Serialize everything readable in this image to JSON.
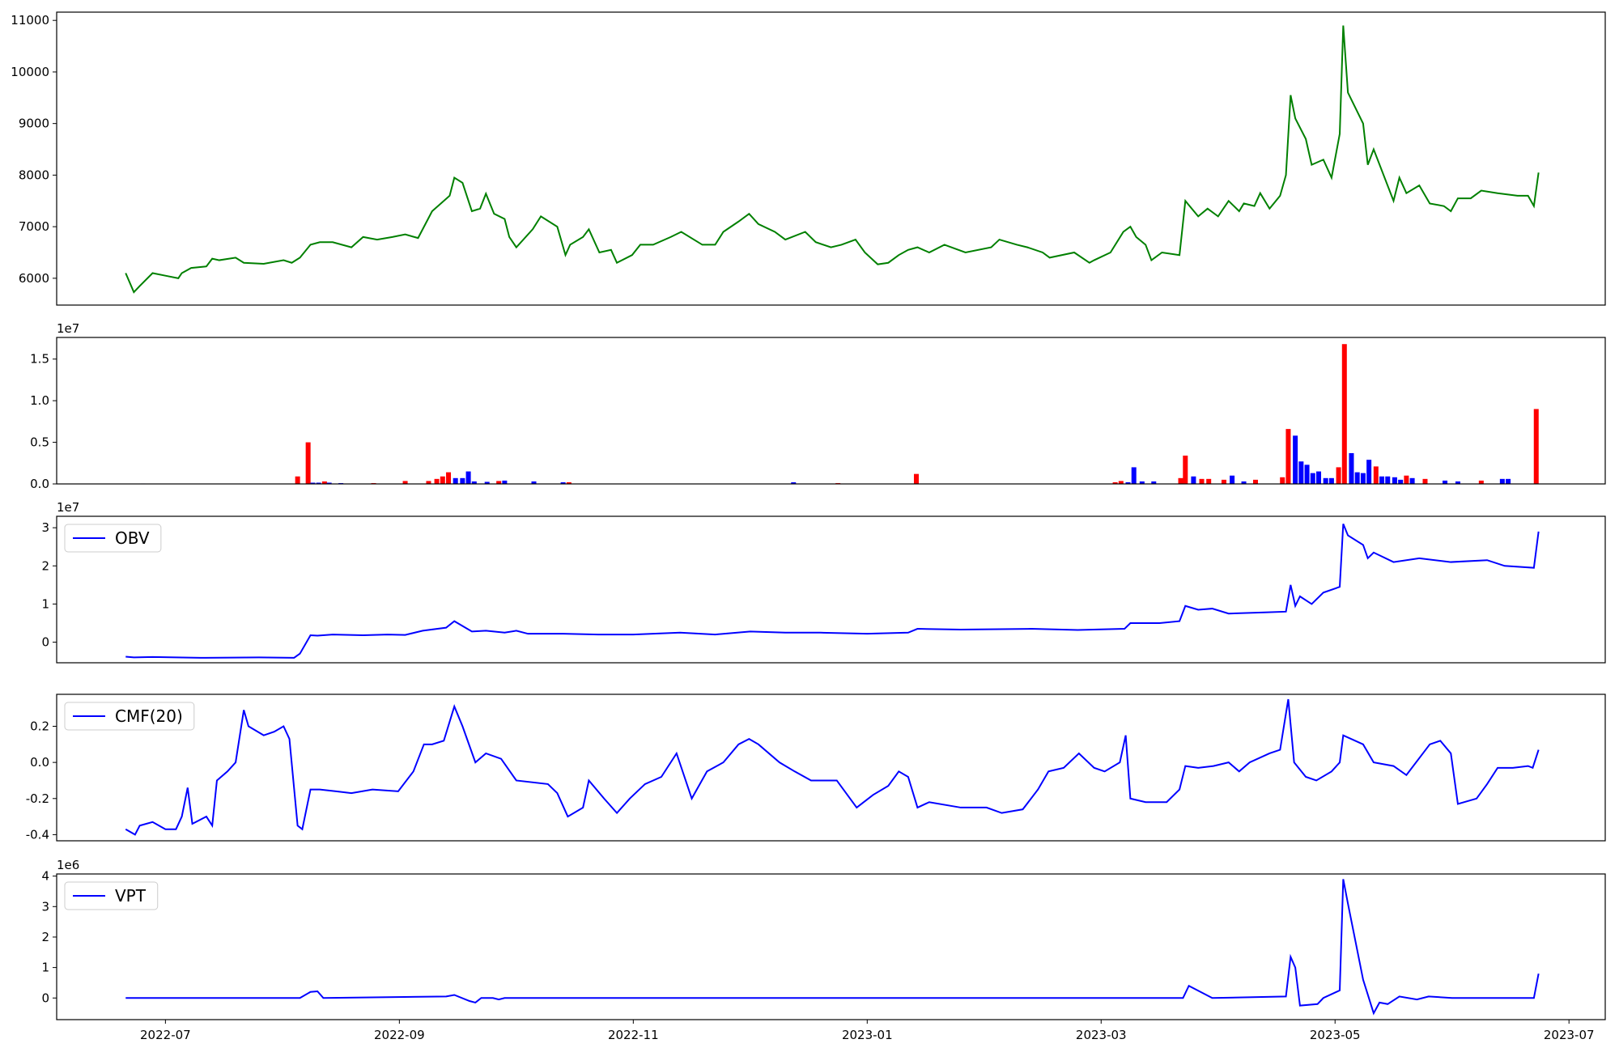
{
  "chart_data": [
    {
      "type": "line",
      "color": "#008000",
      "xlim": [
        6.07,
        19.31
      ],
      "ylim": [
        5480,
        11160
      ],
      "yticks": [
        6000,
        7000,
        8000,
        9000,
        10000,
        11000
      ],
      "x": [
        6.66,
        6.73,
        6.78,
        6.89,
        7.0,
        7.11,
        7.14,
        7.22,
        7.35,
        7.4,
        7.46,
        7.6,
        7.67,
        7.84,
        8.01,
        8.08,
        8.15,
        8.24,
        8.32,
        8.43,
        8.59,
        8.69,
        8.81,
        8.94,
        9.05,
        9.16,
        9.28,
        9.43,
        9.47,
        9.54,
        9.62,
        9.69,
        9.74,
        9.81,
        9.9,
        9.94,
        10.0,
        10.14,
        10.21,
        10.35,
        10.42,
        10.46,
        10.57,
        10.62,
        10.71,
        10.81,
        10.86,
        10.99,
        11.06,
        11.17,
        11.32,
        11.41,
        11.59,
        11.7,
        11.77,
        11.9,
        11.99,
        12.07,
        12.21,
        12.3,
        12.47,
        12.56,
        12.69,
        12.78,
        12.9,
        12.98,
        13.09,
        13.18,
        13.27,
        13.35,
        13.43,
        13.53,
        13.66,
        13.84,
        14.06,
        14.13,
        14.28,
        14.37,
        14.5,
        14.56,
        14.77,
        14.9,
        14.94,
        15.08,
        15.19,
        15.25,
        15.3,
        15.38,
        15.43,
        15.52,
        15.67,
        15.72,
        15.83,
        15.91,
        16.0,
        16.09,
        16.18,
        16.22,
        16.31,
        16.36,
        16.44,
        16.53,
        16.58,
        16.62,
        16.66,
        16.75,
        16.8,
        16.9,
        16.97,
        17.04,
        17.07,
        17.11,
        17.24,
        17.28,
        17.33,
        17.5,
        17.55,
        17.61,
        17.72,
        17.81,
        17.93,
        17.99,
        18.05,
        18.16,
        18.25,
        18.39,
        18.56,
        18.65,
        18.7,
        18.74
      ],
      "values": [
        6100,
        5730,
        5850,
        6100,
        6050,
        6000,
        6100,
        6200,
        6230,
        6380,
        6350,
        6400,
        6300,
        6280,
        6350,
        6300,
        6400,
        6650,
        6700,
        6700,
        6600,
        6800,
        6750,
        6800,
        6850,
        6780,
        7300,
        7600,
        7950,
        7850,
        7300,
        7350,
        7640,
        7250,
        7150,
        6800,
        6600,
        6950,
        7200,
        7000,
        6450,
        6650,
        6800,
        6950,
        6500,
        6550,
        6300,
        6450,
        6650,
        6650,
        6800,
        6900,
        6650,
        6650,
        6900,
        7100,
        7250,
        7050,
        6900,
        6750,
        6900,
        6700,
        6600,
        6650,
        6750,
        6500,
        6270,
        6300,
        6450,
        6550,
        6600,
        6500,
        6650,
        6500,
        6600,
        6750,
        6650,
        6600,
        6500,
        6400,
        6500,
        6300,
        6350,
        6500,
        6900,
        7000,
        6800,
        6650,
        6350,
        6500,
        6450,
        7500,
        7200,
        7350,
        7200,
        7500,
        7300,
        7450,
        7400,
        7650,
        7350,
        7600,
        8000,
        9550,
        9100,
        8700,
        8200,
        8300,
        7950,
        8800,
        10900,
        9600,
        9000,
        8200,
        8500,
        7500,
        7950,
        7650,
        7800,
        7450,
        7400,
        7300,
        7550,
        7550,
        7700,
        7650,
        7600,
        7600,
        7400,
        8050
      ]
    },
    {
      "type": "bar",
      "offset_label": "1e7",
      "xlim": [
        6.07,
        19.31
      ],
      "ylim": [
        0,
        1.76
      ],
      "yticks": [
        {
          "value": 0,
          "label": "0.0"
        },
        {
          "value": 0.5,
          "label": "0.5"
        },
        {
          "value": 1,
          "label": "1.0"
        },
        {
          "value": 1.5,
          "label": "1.5"
        }
      ],
      "x": [
        6.81,
        6.86,
        8.13,
        8.22,
        8.26,
        8.31,
        8.36,
        8.4,
        8.5,
        8.78,
        9.05,
        9.25,
        9.32,
        9.37,
        9.42,
        9.48,
        9.54,
        9.59,
        9.64,
        9.75,
        9.85,
        9.9,
        10.15,
        10.4,
        10.45,
        12.37,
        12.75,
        13.42,
        15.12,
        15.17,
        15.23,
        15.28,
        15.35,
        15.45,
        15.68,
        15.72,
        15.79,
        15.86,
        15.92,
        16.05,
        16.12,
        16.22,
        16.32,
        16.55,
        16.6,
        16.66,
        16.71,
        16.76,
        16.81,
        16.86,
        16.92,
        16.97,
        17.03,
        17.08,
        17.14,
        17.19,
        17.24,
        17.29,
        17.35,
        17.4,
        17.45,
        17.51,
        17.56,
        17.61,
        17.66,
        17.77,
        17.94,
        18.05,
        18.25,
        18.43,
        18.48,
        18.72
      ],
      "values": [
        0.005,
        0.004,
        0.09,
        0.5,
        0.015,
        0.015,
        0.03,
        0.015,
        0.01,
        0.01,
        0.035,
        0.035,
        0.06,
        0.09,
        0.14,
        0.07,
        0.07,
        0.15,
        0.03,
        0.025,
        0.035,
        0.04,
        0.03,
        0.02,
        0.02,
        0.02,
        0.01,
        0.12,
        0.02,
        0.035,
        0.02,
        0.2,
        0.03,
        0.03,
        0.07,
        0.34,
        0.09,
        0.06,
        0.06,
        0.05,
        0.1,
        0.03,
        0.05,
        0.08,
        0.66,
        0.58,
        0.27,
        0.23,
        0.13,
        0.15,
        0.07,
        0.07,
        0.2,
        1.68,
        0.37,
        0.14,
        0.13,
        0.29,
        0.21,
        0.09,
        0.09,
        0.08,
        0.05,
        0.1,
        0.07,
        0.06,
        0.04,
        0.03,
        0.04,
        0.06,
        0.06,
        0.9
      ],
      "colors": [
        "#0000ff",
        "#0000ff",
        "#ff0000",
        "#ff0000",
        "#0000ff",
        "#0000ff",
        "#ff0000",
        "#0000ff",
        "#0000ff",
        "#ff0000",
        "#ff0000",
        "#ff0000",
        "#ff0000",
        "#ff0000",
        "#ff0000",
        "#0000ff",
        "#0000ff",
        "#0000ff",
        "#0000ff",
        "#0000ff",
        "#ff0000",
        "#0000ff",
        "#0000ff",
        "#0000ff",
        "#ff0000",
        "#0000ff",
        "#ff0000",
        "#ff0000",
        "#ff0000",
        "#ff0000",
        "#0000ff",
        "#0000ff",
        "#0000ff",
        "#0000ff",
        "#ff0000",
        "#ff0000",
        "#0000ff",
        "#ff0000",
        "#ff0000",
        "#ff0000",
        "#0000ff",
        "#0000ff",
        "#ff0000",
        "#ff0000",
        "#ff0000",
        "#0000ff",
        "#0000ff",
        "#0000ff",
        "#0000ff",
        "#0000ff",
        "#0000ff",
        "#0000ff",
        "#ff0000",
        "#ff0000",
        "#0000ff",
        "#0000ff",
        "#0000ff",
        "#0000ff",
        "#ff0000",
        "#0000ff",
        "#0000ff",
        "#0000ff",
        "#0000ff",
        "#ff0000",
        "#0000ff",
        "#ff0000",
        "#0000ff",
        "#0000ff",
        "#ff0000",
        "#0000ff",
        "#0000ff",
        "#ff0000"
      ]
    },
    {
      "type": "line",
      "offset_label": "1e7",
      "legend": "upper left",
      "xlim": [
        6.07,
        19.31
      ],
      "ylim": [
        -0.54,
        3.3
      ],
      "yticks": [
        0,
        1,
        2,
        3
      ],
      "x": [
        6.66,
        6.73,
        6.89,
        7.3,
        7.8,
        8.1,
        8.15,
        8.24,
        8.3,
        8.43,
        8.69,
        8.9,
        9.05,
        9.2,
        9.4,
        9.47,
        9.62,
        9.74,
        9.9,
        10.0,
        10.1,
        10.4,
        10.7,
        11.0,
        11.4,
        11.7,
        12.0,
        12.3,
        12.6,
        13.0,
        13.35,
        13.43,
        13.8,
        14.4,
        14.8,
        15.2,
        15.25,
        15.5,
        15.67,
        15.72,
        15.83,
        15.95,
        16.09,
        16.4,
        16.58,
        16.62,
        16.66,
        16.7,
        16.8,
        16.9,
        17.04,
        17.07,
        17.11,
        17.24,
        17.28,
        17.33,
        17.5,
        17.72,
        17.99,
        18.3,
        18.45,
        18.7,
        18.74
      ],
      "series": [
        {
          "name": "OBV",
          "color": "#0000ff",
          "values": [
            -0.38,
            -0.4,
            -0.39,
            -0.41,
            -0.4,
            -0.41,
            -0.3,
            0.18,
            0.17,
            0.2,
            0.18,
            0.2,
            0.19,
            0.3,
            0.38,
            0.55,
            0.28,
            0.3,
            0.25,
            0.3,
            0.22,
            0.22,
            0.2,
            0.2,
            0.25,
            0.2,
            0.28,
            0.25,
            0.25,
            0.22,
            0.25,
            0.35,
            0.33,
            0.35,
            0.32,
            0.35,
            0.5,
            0.5,
            0.55,
            0.95,
            0.85,
            0.88,
            0.75,
            0.78,
            0.8,
            1.5,
            0.95,
            1.2,
            1.0,
            1.3,
            1.45,
            3.1,
            2.8,
            2.55,
            2.2,
            2.35,
            2.1,
            2.2,
            2.1,
            2.15,
            2.0,
            1.95,
            2.9
          ]
        }
      ]
    },
    {
      "type": "line",
      "legend": "upper left",
      "xlim": [
        6.07,
        19.31
      ],
      "ylim": [
        -0.434,
        0.377
      ],
      "yticks": [
        -0.4,
        -0.2,
        {
          "value": 0,
          "label": "0.0"
        },
        0.2
      ],
      "x": [
        6.66,
        6.74,
        6.78,
        6.89,
        7.0,
        7.09,
        7.14,
        7.19,
        7.23,
        7.35,
        7.4,
        7.44,
        7.53,
        7.6,
        7.67,
        7.71,
        7.84,
        7.93,
        8.01,
        8.06,
        8.13,
        8.17,
        8.24,
        8.32,
        8.46,
        8.59,
        8.77,
        8.99,
        9.12,
        9.21,
        9.28,
        9.38,
        9.47,
        9.54,
        9.65,
        9.74,
        9.87,
        10.0,
        10.27,
        10.35,
        10.44,
        10.57,
        10.62,
        10.75,
        10.86,
        10.97,
        11.1,
        11.24,
        11.37,
        11.5,
        11.63,
        11.77,
        11.9,
        11.99,
        12.07,
        12.25,
        12.38,
        12.52,
        12.74,
        12.91,
        13.05,
        13.18,
        13.27,
        13.35,
        13.43,
        13.53,
        13.8,
        14.02,
        14.15,
        14.33,
        14.46,
        14.55,
        14.68,
        14.81,
        14.94,
        15.03,
        15.16,
        15.21,
        15.25,
        15.38,
        15.56,
        15.67,
        15.72,
        15.83,
        15.96,
        16.09,
        16.18,
        16.27,
        16.44,
        16.53,
        16.6,
        16.65,
        16.75,
        16.84,
        16.97,
        17.04,
        17.07,
        17.24,
        17.33,
        17.5,
        17.61,
        17.81,
        17.9,
        17.99,
        18.05,
        18.21,
        18.3,
        18.39,
        18.52,
        18.65,
        18.69,
        18.74
      ],
      "series": [
        {
          "name": "CMF(20)",
          "color": "#0000ff",
          "values": [
            -0.37,
            -0.4,
            -0.35,
            -0.33,
            -0.37,
            -0.37,
            -0.3,
            -0.14,
            -0.34,
            -0.3,
            -0.35,
            -0.1,
            -0.05,
            0.0,
            0.29,
            0.2,
            0.15,
            0.17,
            0.2,
            0.13,
            -0.35,
            -0.37,
            -0.15,
            -0.15,
            -0.16,
            -0.17,
            -0.15,
            -0.16,
            -0.05,
            0.1,
            0.1,
            0.12,
            0.31,
            0.2,
            0.0,
            0.05,
            0.02,
            -0.1,
            -0.12,
            -0.17,
            -0.3,
            -0.25,
            -0.1,
            -0.2,
            -0.28,
            -0.2,
            -0.12,
            -0.08,
            0.05,
            -0.2,
            -0.05,
            0.0,
            0.1,
            0.13,
            0.1,
            0.0,
            -0.05,
            -0.1,
            -0.1,
            -0.25,
            -0.18,
            -0.13,
            -0.05,
            -0.08,
            -0.25,
            -0.22,
            -0.25,
            -0.25,
            -0.28,
            -0.26,
            -0.15,
            -0.05,
            -0.03,
            0.05,
            -0.03,
            -0.05,
            0.0,
            0.15,
            -0.2,
            -0.22,
            -0.22,
            -0.15,
            -0.02,
            -0.03,
            -0.02,
            0.0,
            -0.05,
            0.0,
            0.05,
            0.07,
            0.35,
            0.0,
            -0.08,
            -0.1,
            -0.05,
            0.0,
            0.15,
            0.1,
            0.0,
            -0.02,
            -0.07,
            0.1,
            0.12,
            0.05,
            -0.23,
            -0.2,
            -0.12,
            -0.03,
            -0.03,
            -0.02,
            -0.03,
            0.07
          ]
        }
      ]
    },
    {
      "type": "line",
      "offset_label": "1e6",
      "legend": "upper left",
      "xlim": [
        6.07,
        19.31
      ],
      "ylim": [
        -0.71,
        4.07
      ],
      "yticks": [
        0,
        1,
        2,
        3,
        4
      ],
      "xticks": [
        {
          "value": 7,
          "label": "2022-07"
        },
        {
          "value": 9,
          "label": "2022-09"
        },
        {
          "value": 11,
          "label": "2022-11"
        },
        {
          "value": 13,
          "label": "2023-01"
        },
        {
          "value": 15,
          "label": "2023-03"
        },
        {
          "value": 17,
          "label": "2023-05"
        },
        {
          "value": 19,
          "label": "2023-07"
        }
      ],
      "x": [
        6.66,
        7.5,
        8.15,
        8.24,
        8.3,
        8.35,
        9.4,
        9.47,
        9.6,
        9.65,
        9.7,
        9.8,
        9.85,
        9.9,
        15.7,
        15.75,
        15.85,
        15.95,
        16.58,
        16.62,
        16.66,
        16.7,
        16.85,
        16.9,
        17.04,
        17.07,
        17.11,
        17.24,
        17.33,
        17.38,
        17.45,
        17.55,
        17.7,
        17.8,
        18.0,
        18.7,
        18.74
      ],
      "series": [
        {
          "name": "VPT",
          "color": "#0000ff",
          "values": [
            0.0,
            0.0,
            0.0,
            0.2,
            0.22,
            0.0,
            0.05,
            0.1,
            -0.1,
            -0.15,
            0.0,
            0.0,
            -0.05,
            0.0,
            0.0,
            0.4,
            0.2,
            0.0,
            0.05,
            1.35,
            1.0,
            -0.25,
            -0.2,
            0.0,
            0.25,
            3.9,
            3.1,
            0.6,
            -0.5,
            -0.15,
            -0.2,
            0.05,
            -0.05,
            0.05,
            0.0,
            0.0,
            0.8
          ]
        }
      ]
    }
  ]
}
